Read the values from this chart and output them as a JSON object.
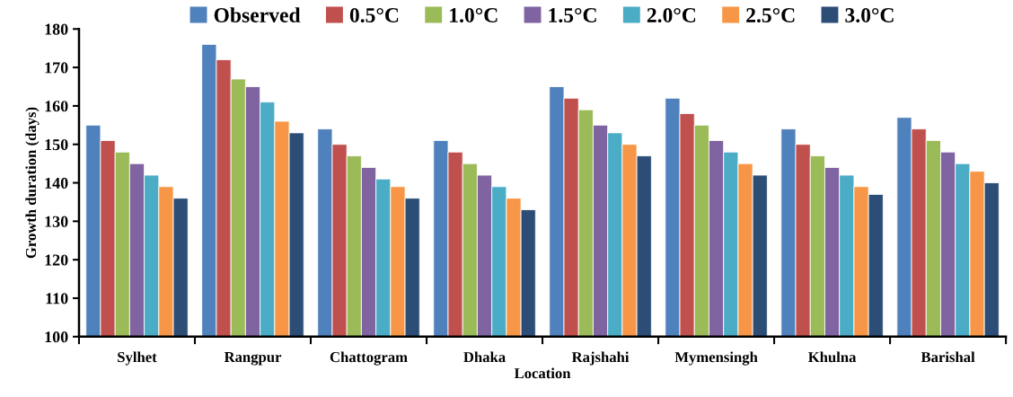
{
  "chart_data": {
    "type": "bar",
    "xlabel": "Location",
    "ylabel": "Growth duration (days)",
    "categories": [
      "Sylhet",
      "Rangpur",
      "Chattogram",
      "Dhaka",
      "Rajshahi",
      "Mymensingh",
      "Khulna",
      "Barishal"
    ],
    "series": [
      {
        "name": "Observed",
        "color": "#4f81bd",
        "values": [
          155,
          176,
          154,
          151,
          165,
          162,
          154,
          157
        ]
      },
      {
        "name": "0.5°C",
        "color": "#c0504d",
        "values": [
          151,
          172,
          150,
          148,
          162,
          158,
          150,
          154
        ]
      },
      {
        "name": "1.0°C",
        "color": "#9bbb59",
        "values": [
          148,
          167,
          147,
          145,
          159,
          155,
          147,
          151
        ]
      },
      {
        "name": "1.5°C",
        "color": "#8064a2",
        "values": [
          145,
          165,
          144,
          142,
          155,
          151,
          144,
          148
        ]
      },
      {
        "name": "2.0°C",
        "color": "#4bacc6",
        "values": [
          142,
          161,
          141,
          139,
          153,
          148,
          142,
          145
        ]
      },
      {
        "name": "2.5°C",
        "color": "#f79646",
        "values": [
          139,
          156,
          139,
          136,
          150,
          145,
          139,
          143
        ]
      },
      {
        "name": "3.0°C",
        "color": "#2c4d75",
        "values": [
          136,
          153,
          136,
          133,
          147,
          142,
          137,
          140
        ]
      }
    ],
    "ylim": [
      100,
      180
    ],
    "yticks": [
      100,
      110,
      120,
      130,
      140,
      150,
      160,
      170,
      180
    ],
    "grid": false,
    "legend": "top"
  }
}
